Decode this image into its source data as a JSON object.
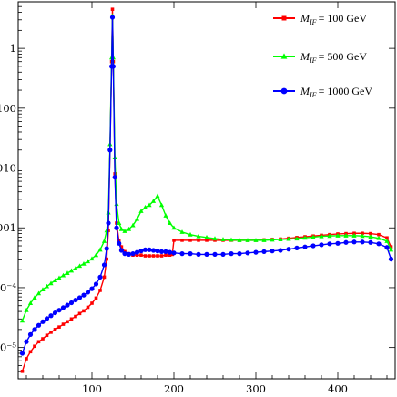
{
  "chart_data": {
    "type": "line",
    "xlim": [
      10,
      470
    ],
    "ylim": [
      3e-06,
      6
    ],
    "yscale": "log",
    "grid": false,
    "legend_position": "top-right",
    "x_ticks": [
      {
        "value": 100,
        "label": "100"
      },
      {
        "value": 200,
        "label": "200"
      },
      {
        "value": 300,
        "label": "300"
      },
      {
        "value": 400,
        "label": "400"
      }
    ],
    "y_ticks": [
      {
        "value": 1e-05,
        "label": "10⁻⁵"
      },
      {
        "value": 0.0001,
        "label": "10⁻⁴"
      },
      {
        "value": 0.001,
        "label": "0.001"
      },
      {
        "value": 0.01,
        "label": "0.010"
      },
      {
        "value": 0.1,
        "label": "0.100"
      },
      {
        "value": 1,
        "label": "1"
      }
    ],
    "series": [
      {
        "name": "M_IF = 100 GeV",
        "legend_label": "= 100 GeV",
        "color": "#ff0000",
        "marker": "square",
        "points": [
          [
            15,
            4e-06
          ],
          [
            20,
            6.5e-06
          ],
          [
            25,
            8.5e-06
          ],
          [
            30,
            1.05e-05
          ],
          [
            35,
            1.25e-05
          ],
          [
            40,
            1.4e-05
          ],
          [
            45,
            1.6e-05
          ],
          [
            50,
            1.8e-05
          ],
          [
            55,
            2e-05
          ],
          [
            60,
            2.2e-05
          ],
          [
            65,
            2.45e-05
          ],
          [
            70,
            2.7e-05
          ],
          [
            75,
            3e-05
          ],
          [
            80,
            3.3e-05
          ],
          [
            85,
            3.7e-05
          ],
          [
            90,
            4.1e-05
          ],
          [
            95,
            4.7e-05
          ],
          [
            100,
            5.5e-05
          ],
          [
            105,
            6.7e-05
          ],
          [
            110,
            9e-05
          ],
          [
            115,
            0.00015
          ],
          [
            118,
            0.0003
          ],
          [
            120,
            0.0009
          ],
          [
            122,
            0.02
          ],
          [
            124,
            0.6
          ],
          [
            125,
            4.5
          ],
          [
            126,
            0.6
          ],
          [
            128,
            0.008
          ],
          [
            130,
            0.0012
          ],
          [
            133,
            0.0006
          ],
          [
            136,
            0.00048
          ],
          [
            140,
            0.0004
          ],
          [
            145,
            0.00037
          ],
          [
            150,
            0.00035
          ],
          [
            155,
            0.00035
          ],
          [
            160,
            0.00035
          ],
          [
            165,
            0.00034
          ],
          [
            170,
            0.00034
          ],
          [
            175,
            0.00034
          ],
          [
            180,
            0.00034
          ],
          [
            185,
            0.00034
          ],
          [
            190,
            0.00035
          ],
          [
            195,
            0.00035
          ],
          [
            198,
            0.00036
          ],
          [
            200,
            0.00062
          ],
          [
            210,
            0.00062
          ],
          [
            220,
            0.00062
          ],
          [
            230,
            0.00062
          ],
          [
            240,
            0.00062
          ],
          [
            250,
            0.00062
          ],
          [
            260,
            0.00062
          ],
          [
            270,
            0.00062
          ],
          [
            280,
            0.00062
          ],
          [
            290,
            0.00062
          ],
          [
            300,
            0.00062
          ],
          [
            310,
            0.00063
          ],
          [
            320,
            0.00064
          ],
          [
            330,
            0.00065
          ],
          [
            340,
            0.00067
          ],
          [
            350,
            0.00069
          ],
          [
            360,
            0.00071
          ],
          [
            370,
            0.00073
          ],
          [
            380,
            0.00075
          ],
          [
            390,
            0.00077
          ],
          [
            400,
            0.00079
          ],
          [
            410,
            0.0008
          ],
          [
            420,
            0.00081
          ],
          [
            430,
            0.00081
          ],
          [
            440,
            0.0008
          ],
          [
            450,
            0.00077
          ],
          [
            460,
            0.00068
          ],
          [
            465,
            0.00048
          ]
        ]
      },
      {
        "name": "M_IF = 500 GeV",
        "legend_label": "= 500 GeV",
        "color": "#00ff00",
        "marker": "triangle",
        "points": [
          [
            15,
            2.8e-05
          ],
          [
            20,
            4.2e-05
          ],
          [
            25,
            5.5e-05
          ],
          [
            30,
            6.8e-05
          ],
          [
            35,
            8e-05
          ],
          [
            40,
            9.3e-05
          ],
          [
            45,
            0.000105
          ],
          [
            50,
            0.000118
          ],
          [
            55,
            0.000132
          ],
          [
            60,
            0.000145
          ],
          [
            65,
            0.00016
          ],
          [
            70,
            0.000175
          ],
          [
            75,
            0.000192
          ],
          [
            80,
            0.00021
          ],
          [
            85,
            0.00023
          ],
          [
            90,
            0.00025
          ],
          [
            95,
            0.000275
          ],
          [
            100,
            0.000305
          ],
          [
            105,
            0.00035
          ],
          [
            110,
            0.00043
          ],
          [
            115,
            0.0006
          ],
          [
            118,
            0.0009
          ],
          [
            120,
            0.0018
          ],
          [
            122,
            0.025
          ],
          [
            124,
            0.7
          ],
          [
            125,
            3.5
          ],
          [
            126,
            0.7
          ],
          [
            128,
            0.015
          ],
          [
            130,
            0.0025
          ],
          [
            133,
            0.0012
          ],
          [
            136,
            0.00095
          ],
          [
            140,
            0.00088
          ],
          [
            145,
            0.00095
          ],
          [
            150,
            0.0011
          ],
          [
            155,
            0.0014
          ],
          [
            160,
            0.0019
          ],
          [
            165,
            0.0022
          ],
          [
            170,
            0.0024
          ],
          [
            175,
            0.0028
          ],
          [
            180,
            0.0034
          ],
          [
            185,
            0.0024
          ],
          [
            190,
            0.0016
          ],
          [
            195,
            0.0012
          ],
          [
            200,
            0.001
          ],
          [
            210,
            0.00085
          ],
          [
            220,
            0.00077
          ],
          [
            230,
            0.00072
          ],
          [
            240,
            0.00069
          ],
          [
            250,
            0.00066
          ],
          [
            260,
            0.00064
          ],
          [
            270,
            0.00063
          ],
          [
            280,
            0.00062
          ],
          [
            290,
            0.00062
          ],
          [
            300,
            0.00062
          ],
          [
            310,
            0.00062
          ],
          [
            320,
            0.00063
          ],
          [
            330,
            0.00064
          ],
          [
            340,
            0.00065
          ],
          [
            350,
            0.00066
          ],
          [
            360,
            0.00068
          ],
          [
            370,
            0.0007
          ],
          [
            380,
            0.00072
          ],
          [
            390,
            0.00073
          ],
          [
            400,
            0.00074
          ],
          [
            410,
            0.00074
          ],
          [
            420,
            0.00074
          ],
          [
            430,
            0.00073
          ],
          [
            440,
            0.00071
          ],
          [
            450,
            0.00067
          ],
          [
            460,
            0.0006
          ],
          [
            465,
            0.00043
          ]
        ]
      },
      {
        "name": "M_IF = 1000 GeV",
        "legend_label": "= 1000 GeV",
        "color": "#0000ff",
        "marker": "circle",
        "points": [
          [
            15,
            8e-06
          ],
          [
            20,
            1.25e-05
          ],
          [
            25,
            1.65e-05
          ],
          [
            30,
            2e-05
          ],
          [
            35,
            2.35e-05
          ],
          [
            40,
            2.7e-05
          ],
          [
            45,
            3.05e-05
          ],
          [
            50,
            3.4e-05
          ],
          [
            55,
            3.8e-05
          ],
          [
            60,
            4.2e-05
          ],
          [
            65,
            4.65e-05
          ],
          [
            70,
            5.1e-05
          ],
          [
            75,
            5.6e-05
          ],
          [
            80,
            6.2e-05
          ],
          [
            85,
            6.8e-05
          ],
          [
            90,
            7.5e-05
          ],
          [
            95,
            8.4e-05
          ],
          [
            100,
            9.6e-05
          ],
          [
            105,
            0.000115
          ],
          [
            110,
            0.00015
          ],
          [
            115,
            0.00024
          ],
          [
            118,
            0.00045
          ],
          [
            120,
            0.0012
          ],
          [
            122,
            0.02
          ],
          [
            124,
            0.5
          ],
          [
            125,
            3.3
          ],
          [
            126,
            0.5
          ],
          [
            128,
            0.007
          ],
          [
            130,
            0.001
          ],
          [
            133,
            0.00055
          ],
          [
            136,
            0.00042
          ],
          [
            140,
            0.00037
          ],
          [
            145,
            0.00036
          ],
          [
            150,
            0.00037
          ],
          [
            155,
            0.00039
          ],
          [
            160,
            0.00041
          ],
          [
            165,
            0.00043
          ],
          [
            170,
            0.00043
          ],
          [
            175,
            0.00042
          ],
          [
            180,
            0.00041
          ],
          [
            185,
            0.0004
          ],
          [
            190,
            0.0004
          ],
          [
            195,
            0.00039
          ],
          [
            200,
            0.00038
          ],
          [
            210,
            0.00037
          ],
          [
            220,
            0.00037
          ],
          [
            230,
            0.00036
          ],
          [
            240,
            0.00036
          ],
          [
            250,
            0.00036
          ],
          [
            260,
            0.00036
          ],
          [
            270,
            0.00037
          ],
          [
            280,
            0.00037
          ],
          [
            290,
            0.00038
          ],
          [
            300,
            0.00039
          ],
          [
            310,
            0.0004
          ],
          [
            320,
            0.00041
          ],
          [
            330,
            0.00042
          ],
          [
            340,
            0.00044
          ],
          [
            350,
            0.00046
          ],
          [
            360,
            0.00048
          ],
          [
            370,
            0.0005
          ],
          [
            380,
            0.00052
          ],
          [
            390,
            0.00054
          ],
          [
            400,
            0.00055
          ],
          [
            410,
            0.00057
          ],
          [
            420,
            0.00058
          ],
          [
            430,
            0.00058
          ],
          [
            440,
            0.00057
          ],
          [
            450,
            0.00054
          ],
          [
            460,
            0.00047
          ],
          [
            465,
            0.0003
          ]
        ]
      }
    ]
  }
}
